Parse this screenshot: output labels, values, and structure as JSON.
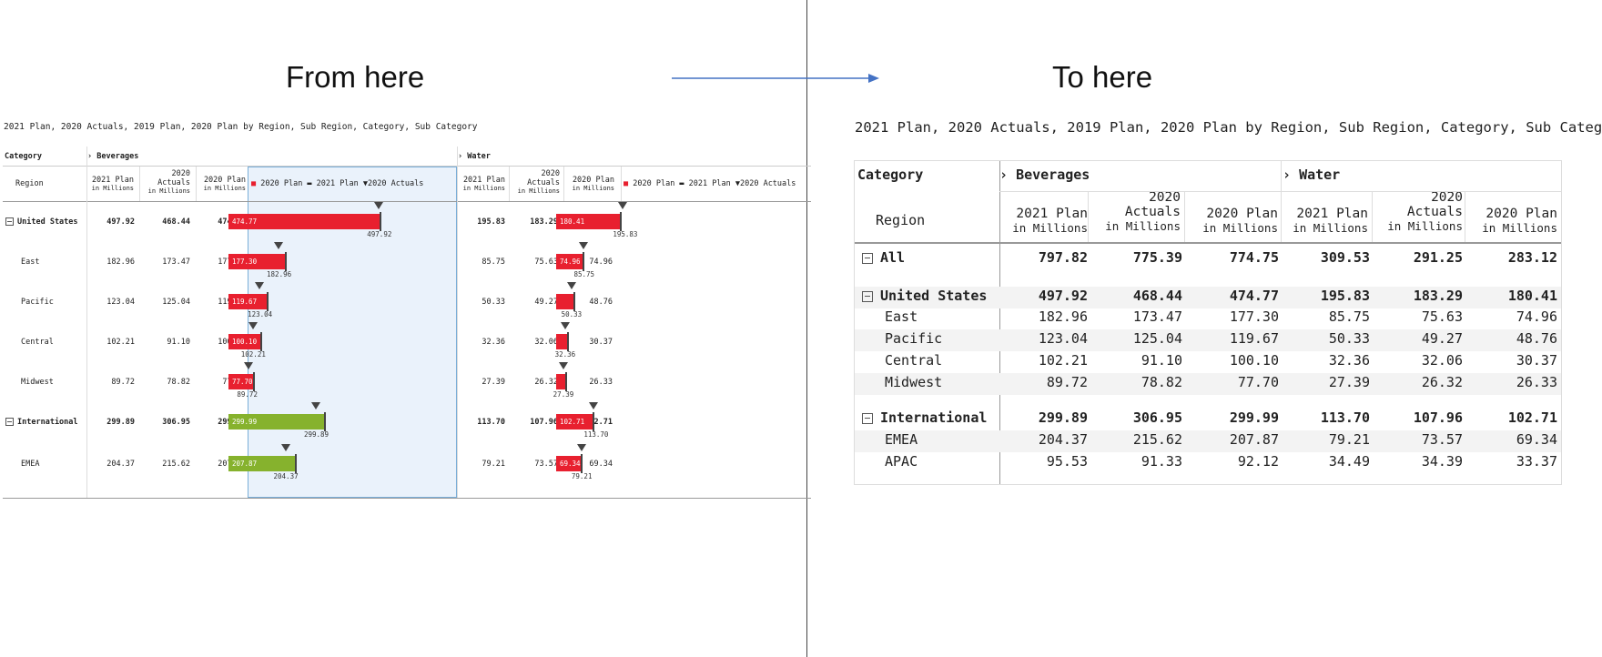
{
  "headings": {
    "from": "From here",
    "to": "To here"
  },
  "subtitle": "2021 Plan, 2020 Actuals, 2019 Plan, 2020 Plan by Region, Sub Region, Category, Sub Category",
  "headers": {
    "category": "Category",
    "region": "Region",
    "beverages": "Beverages",
    "water": "Water",
    "plan2021": "2021 Plan",
    "actuals2020": "2020",
    "actuals2020b": "Actuals",
    "plan2020": "2020 Plan",
    "unit": "in Millions",
    "legend_plan2020": "2020 Plan",
    "legend_plan2021": "2021 Plan",
    "legend_actuals2020": "2020 Actuals"
  },
  "left_rows": [
    {
      "name": "United States",
      "bold": true,
      "group": true,
      "bev": [
        "497.92",
        "468.44",
        "474.77"
      ],
      "wat": [
        "195.83",
        "183.29",
        "180.41"
      ],
      "bev_bar": {
        "label": "474.77",
        "note": "497.92",
        "color": "red"
      },
      "wat_bar": {
        "label": "180.41",
        "note": "195.83",
        "color": "red"
      }
    },
    {
      "name": "East",
      "bold": false,
      "group": false,
      "bev": [
        "182.96",
        "173.47",
        "177.30"
      ],
      "wat": [
        "85.75",
        "75.63",
        "74.96"
      ],
      "bev_bar": {
        "label": "177.30",
        "note": "182.96",
        "color": "red"
      },
      "wat_bar": {
        "label": "74.96",
        "note": "85.75",
        "color": "red"
      }
    },
    {
      "name": "Pacific",
      "bold": false,
      "group": false,
      "bev": [
        "123.04",
        "125.04",
        "119.67"
      ],
      "wat": [
        "50.33",
        "49.27",
        "48.76"
      ],
      "bev_bar": {
        "label": "119.67",
        "note": "123.04",
        "color": "red"
      },
      "wat_bar": {
        "label": "",
        "note": "50.33",
        "color": "red"
      }
    },
    {
      "name": "Central",
      "bold": false,
      "group": false,
      "bev": [
        "102.21",
        "91.10",
        "100.10"
      ],
      "wat": [
        "32.36",
        "32.06",
        "30.37"
      ],
      "bev_bar": {
        "label": "100.10",
        "note": "102.21",
        "color": "red"
      },
      "wat_bar": {
        "label": "",
        "note": "32.36",
        "color": "red"
      }
    },
    {
      "name": "Midwest",
      "bold": false,
      "group": false,
      "bev": [
        "89.72",
        "78.82",
        "77.70"
      ],
      "wat": [
        "27.39",
        "26.32",
        "26.33"
      ],
      "bev_bar": {
        "label": "77.70",
        "note": "89.72",
        "color": "red"
      },
      "wat_bar": {
        "label": "",
        "note": "27.39",
        "color": "red"
      }
    },
    {
      "name": "International",
      "bold": true,
      "group": true,
      "bev": [
        "299.89",
        "306.95",
        "299.99"
      ],
      "wat": [
        "113.70",
        "107.96",
        "102.71"
      ],
      "bev_bar": {
        "label": "299.99",
        "note": "299.89",
        "color": "green"
      },
      "wat_bar": {
        "label": "102.71",
        "note": "113.70",
        "color": "red"
      }
    },
    {
      "name": "EMEA",
      "bold": false,
      "group": false,
      "bev": [
        "204.37",
        "215.62",
        "207.87"
      ],
      "wat": [
        "79.21",
        "73.57",
        "69.34"
      ],
      "bev_bar": {
        "label": "207.87",
        "note": "204.37",
        "color": "green"
      },
      "wat_bar": {
        "label": "69.34",
        "note": "79.21",
        "color": "red"
      }
    }
  ],
  "right_rows": [
    {
      "name": "All",
      "bold": true,
      "group": true,
      "values": [
        "797.82",
        "775.39",
        "774.75",
        "309.53",
        "291.25",
        "283.12"
      ]
    },
    {
      "name": "United States",
      "bold": true,
      "group": true,
      "values": [
        "497.92",
        "468.44",
        "474.77",
        "195.83",
        "183.29",
        "180.41"
      ]
    },
    {
      "name": "East",
      "bold": false,
      "group": false,
      "values": [
        "182.96",
        "173.47",
        "177.30",
        "85.75",
        "75.63",
        "74.96"
      ]
    },
    {
      "name": "Pacific",
      "bold": false,
      "group": false,
      "values": [
        "123.04",
        "125.04",
        "119.67",
        "50.33",
        "49.27",
        "48.76"
      ]
    },
    {
      "name": "Central",
      "bold": false,
      "group": false,
      "values": [
        "102.21",
        "91.10",
        "100.10",
        "32.36",
        "32.06",
        "30.37"
      ]
    },
    {
      "name": "Midwest",
      "bold": false,
      "group": false,
      "values": [
        "89.72",
        "78.82",
        "77.70",
        "27.39",
        "26.32",
        "26.33"
      ]
    },
    {
      "name": "International",
      "bold": true,
      "group": true,
      "values": [
        "299.89",
        "306.95",
        "299.99",
        "113.70",
        "107.96",
        "102.71"
      ]
    },
    {
      "name": "EMEA",
      "bold": false,
      "group": false,
      "values": [
        "204.37",
        "215.62",
        "207.87",
        "79.21",
        "73.57",
        "69.34"
      ]
    },
    {
      "name": "APAC",
      "bold": false,
      "group": false,
      "values": [
        "95.53",
        "91.33",
        "92.12",
        "34.49",
        "34.39",
        "33.37"
      ]
    }
  ]
}
